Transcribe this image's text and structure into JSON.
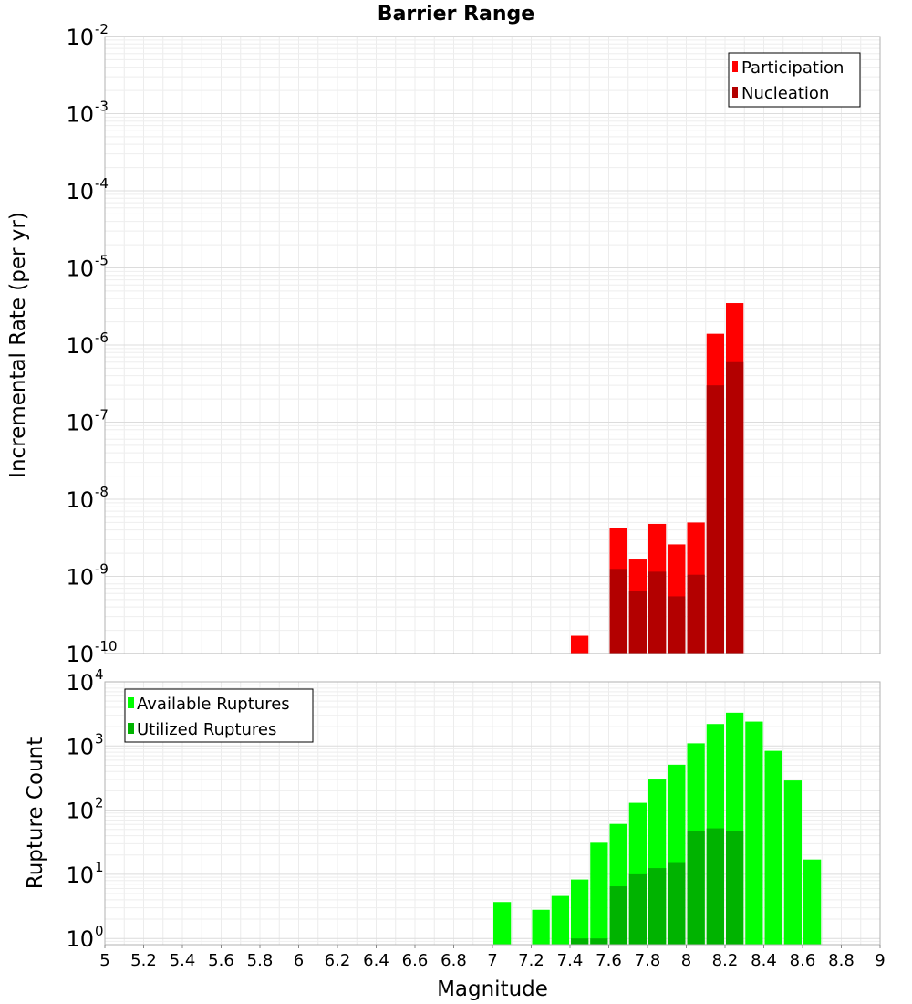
{
  "chart_data": [
    {
      "type": "bar",
      "title": "Barrier Range",
      "xlabel": "",
      "ylabel": "Incremental Rate (per yr)",
      "yscale": "log",
      "ylim": [
        1e-10,
        0.01
      ],
      "xlim": [
        5,
        9
      ],
      "y_ticks": [
        {
          "base": "10",
          "exp": "-2"
        },
        {
          "base": "10",
          "exp": "-3"
        },
        {
          "base": "10",
          "exp": "-4"
        },
        {
          "base": "10",
          "exp": "-5"
        },
        {
          "base": "10",
          "exp": "-6"
        },
        {
          "base": "10",
          "exp": "-7"
        },
        {
          "base": "10",
          "exp": "-8"
        },
        {
          "base": "10",
          "exp": "-9"
        },
        {
          "base": "10",
          "exp": "-10"
        }
      ],
      "x": [
        7.45,
        7.65,
        7.75,
        7.85,
        7.95,
        8.05,
        8.15,
        8.25
      ],
      "series": [
        {
          "name": "Participation",
          "color": "#ff0000",
          "values": [
            1.7e-10,
            4.2e-09,
            1.7e-09,
            4.8e-09,
            2.6e-09,
            5e-09,
            1.4e-06,
            3.5e-06
          ]
        },
        {
          "name": "Nucleation",
          "color": "#b30000",
          "values": [
            null,
            1.25e-09,
            6.5e-10,
            1.15e-09,
            5.5e-10,
            1.05e-09,
            3e-07,
            6e-07
          ]
        }
      ],
      "legend": {
        "position": "top-right",
        "items": [
          "Participation",
          "Nucleation"
        ]
      }
    },
    {
      "type": "bar",
      "title": "",
      "xlabel": "Magnitude",
      "ylabel": "Rupture Count",
      "yscale": "log",
      "ylim": [
        0.8,
        10000
      ],
      "xlim": [
        5,
        9
      ],
      "x_ticks": [
        "5",
        "5.2",
        "5.4",
        "5.6",
        "5.8",
        "6",
        "6.2",
        "6.4",
        "6.6",
        "6.8",
        "7",
        "7.2",
        "7.4",
        "7.6",
        "7.8",
        "8",
        "8.2",
        "8.4",
        "8.6",
        "8.8",
        "9"
      ],
      "y_ticks": [
        {
          "base": "10",
          "exp": "4"
        },
        {
          "base": "10",
          "exp": "3"
        },
        {
          "base": "10",
          "exp": "2"
        },
        {
          "base": "10",
          "exp": "1"
        },
        {
          "base": "10",
          "exp": "0"
        }
      ],
      "x": [
        7.05,
        7.25,
        7.35,
        7.45,
        7.55,
        7.65,
        7.75,
        7.85,
        7.95,
        8.05,
        8.15,
        8.25,
        8.35,
        8.45,
        8.55,
        8.65
      ],
      "series": [
        {
          "name": "Available Ruptures",
          "color": "#00ff00",
          "values": [
            3.7,
            2.8,
            4.6,
            8.3,
            31,
            61,
            130,
            300,
            510,
            1100,
            2200,
            3300,
            2400,
            840,
            290,
            17
          ]
        },
        {
          "name": "Utilized Ruptures",
          "color": "#00b300",
          "values": [
            null,
            null,
            null,
            1.0,
            1.0,
            6.5,
            10,
            12.5,
            15.5,
            47,
            52,
            47,
            null,
            null,
            null,
            null
          ]
        }
      ],
      "legend": {
        "position": "top-left",
        "items": [
          "Available Ruptures",
          "Utilized Ruptures"
        ]
      }
    }
  ]
}
